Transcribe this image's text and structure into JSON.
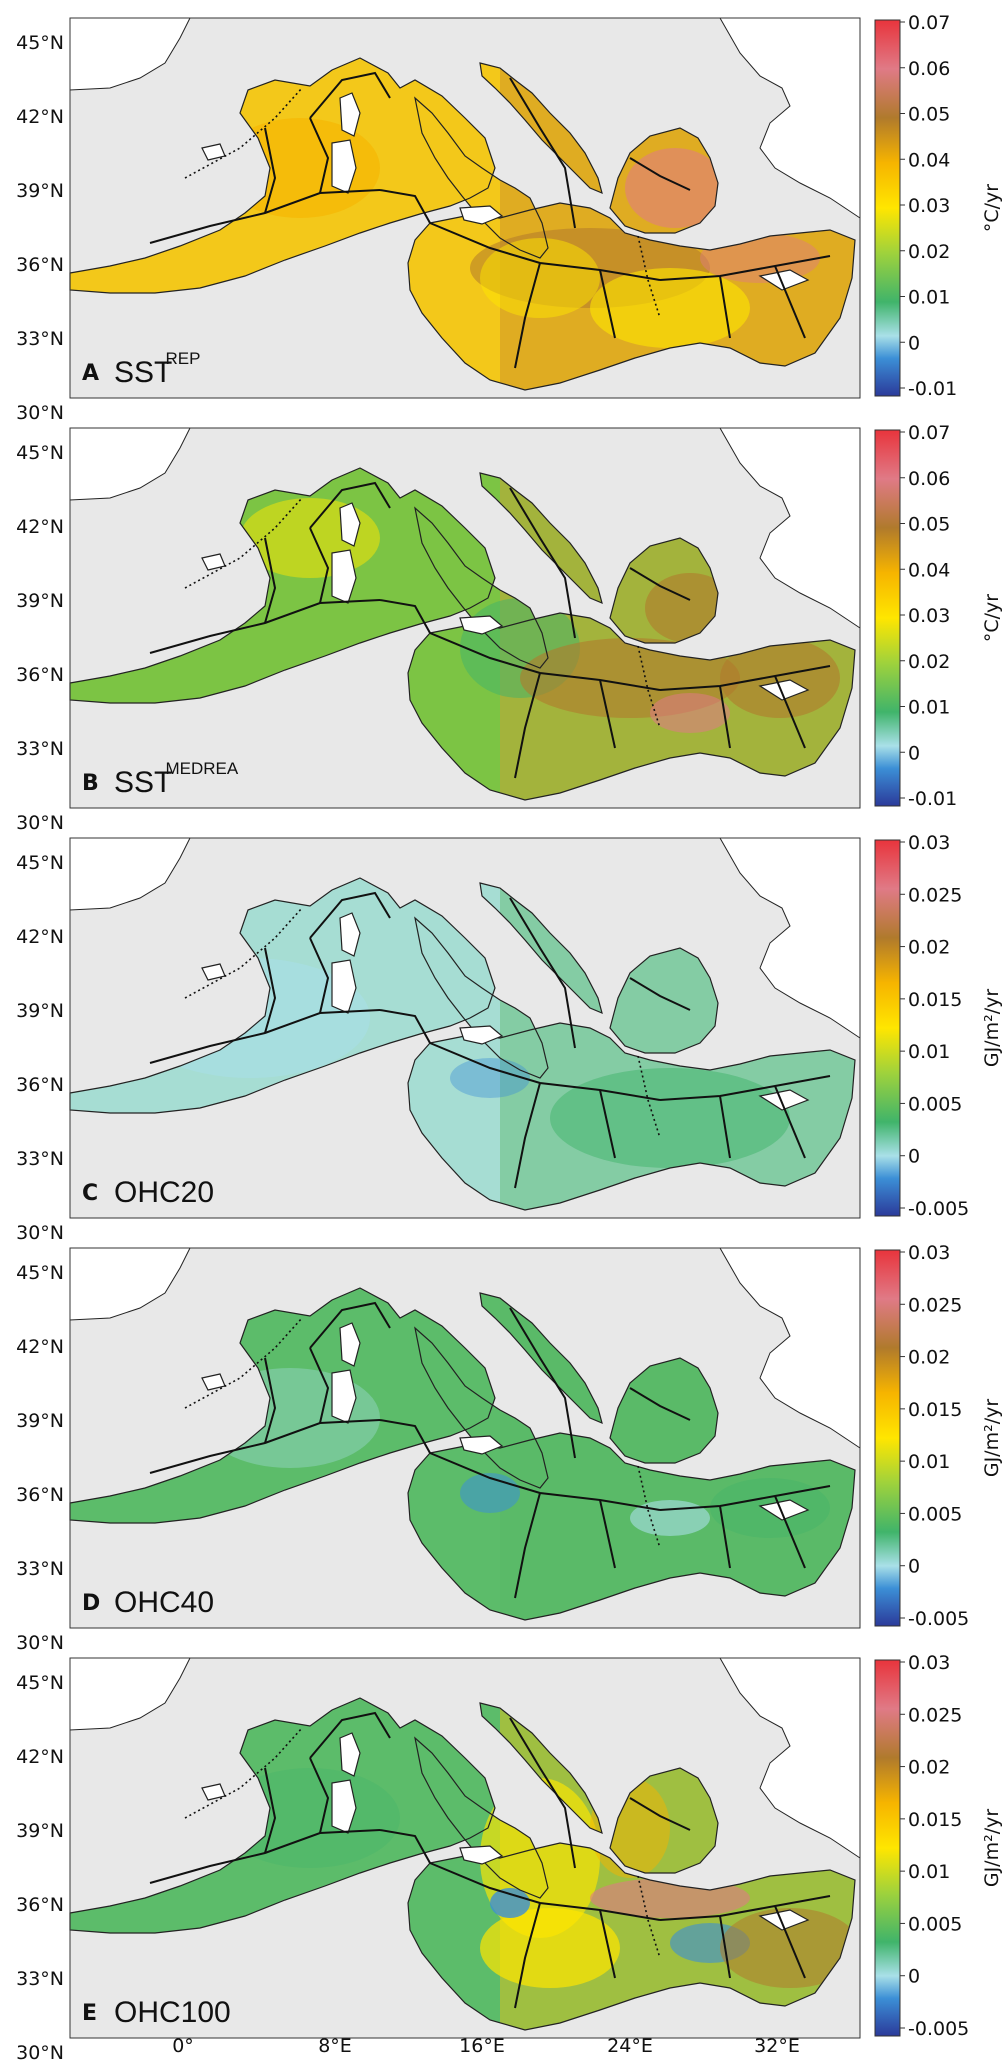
{
  "figure": {
    "lat_labels": [
      "45°N",
      "42°N",
      "39°N",
      "36°N",
      "33°N",
      "30°N"
    ],
    "lon_labels": [
      "0°",
      "8°E",
      "16°E",
      "24°E",
      "32°E"
    ],
    "panels": [
      {
        "letter": "A",
        "name": "SST",
        "sup": "REP",
        "unit": "°C/yr",
        "cb_ticks": [
          "0.07",
          "0.06",
          "0.05",
          "0.04",
          "0.03",
          "0.02",
          "0.01",
          "0",
          "-0.01"
        ]
      },
      {
        "letter": "B",
        "name": "SST",
        "sup": "MEDREA",
        "unit": "°C/yr",
        "cb_ticks": [
          "0.07",
          "0.06",
          "0.05",
          "0.04",
          "0.03",
          "0.02",
          "0.01",
          "0",
          "-0.01"
        ]
      },
      {
        "letter": "C",
        "name": "OHC20",
        "sup": "",
        "unit": "GJ/m²/yr",
        "cb_ticks": [
          "0.03",
          "0.025",
          "0.02",
          "0.015",
          "0.01",
          "0.005",
          "0",
          "-0.005"
        ]
      },
      {
        "letter": "D",
        "name": "OHC40",
        "sup": "",
        "unit": "GJ/m²/yr",
        "cb_ticks": [
          "0.03",
          "0.025",
          "0.02",
          "0.015",
          "0.01",
          "0.005",
          "0",
          "-0.005"
        ]
      },
      {
        "letter": "E",
        "name": "OHC100",
        "sup": "",
        "unit": "GJ/m²/yr",
        "cb_ticks": [
          "0.03",
          "0.025",
          "0.02",
          "0.015",
          "0.01",
          "0.005",
          "0",
          "-0.005"
        ]
      }
    ]
  },
  "colors": {
    "ocean_bg": "#e8e8e8",
    "land": "#ffffff",
    "cmap": [
      "#2b3a9a",
      "#3c8fd6",
      "#a9e0e8",
      "#40b46a",
      "#9fd23c",
      "#ffe600",
      "#f6b400",
      "#b07a2c",
      "#e07a86",
      "#e8343c"
    ],
    "panel_sea_base": [
      "#f3c81a",
      "#7cc444",
      "#a6ddd3",
      "#5cbc6a",
      "#5cbc6a"
    ],
    "panel_east_tint": [
      "#c88a2c",
      "#d2a032",
      "#5cb86a",
      "#58b866",
      "#f2c410"
    ]
  }
}
